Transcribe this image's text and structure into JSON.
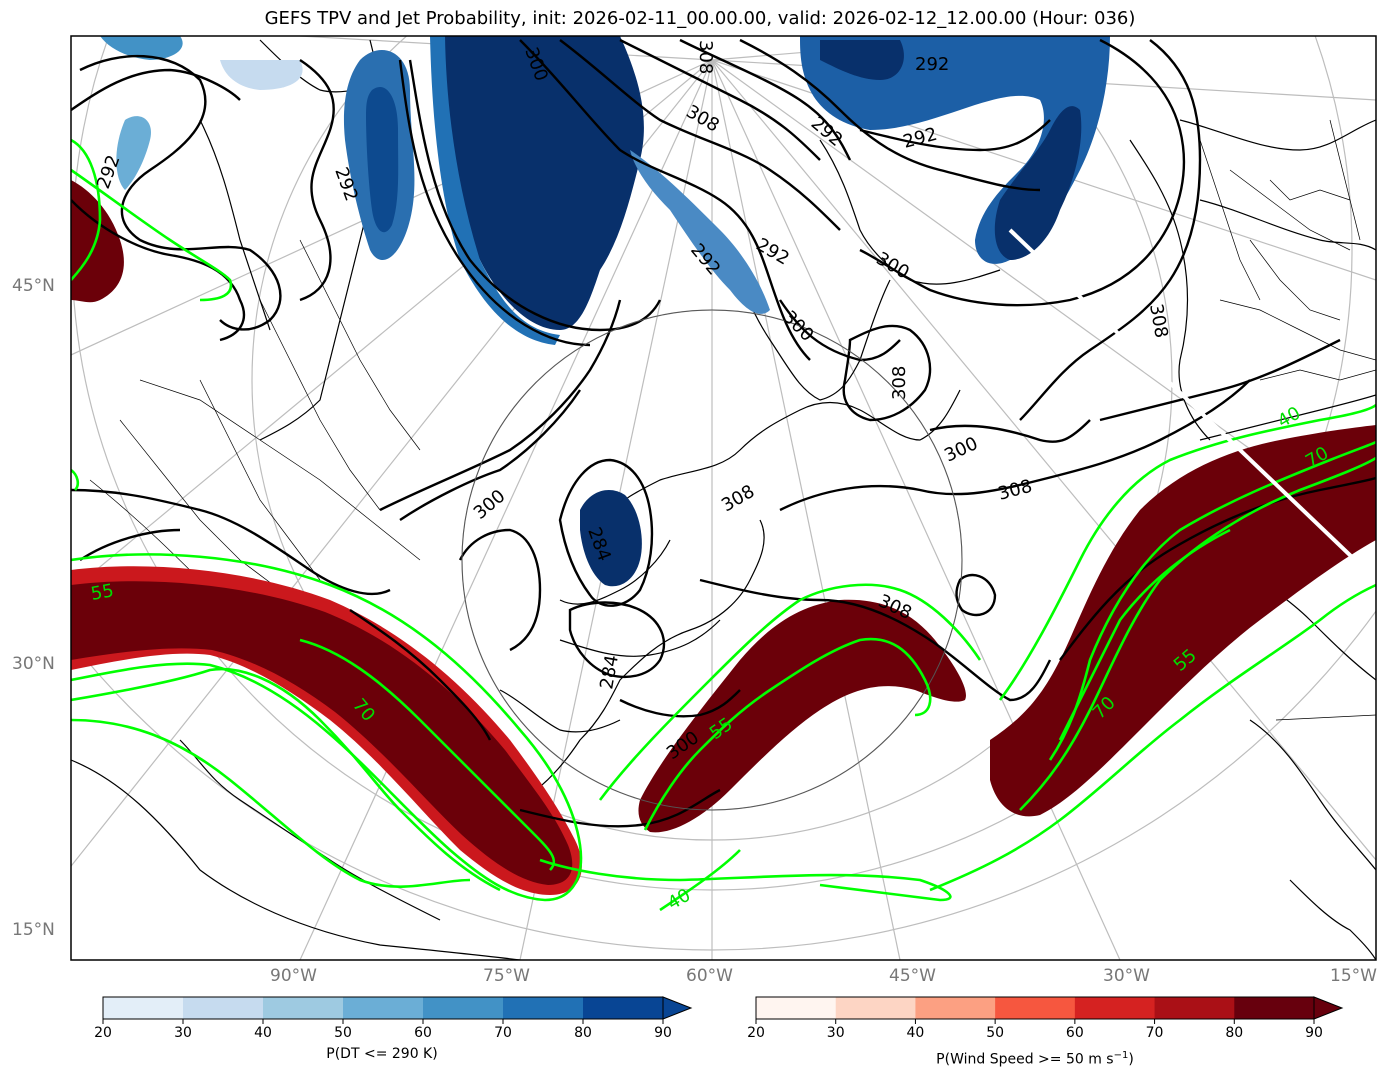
{
  "title": "GEFS TPV and Jet Probability, init: 2026-02-11_00.00.00, valid: 2026-02-12_12.00.00 (Hour: 036)",
  "lat_labels": [
    "45°N",
    "30°N",
    "15°N"
  ],
  "lon_labels": [
    "90°W",
    "75°W",
    "60°W",
    "45°W",
    "30°W",
    "15°W"
  ],
  "contour_labels_black": [
    "292",
    "292",
    "292",
    "292",
    "292",
    "292",
    "292",
    "300",
    "300",
    "300",
    "300",
    "300",
    "300",
    "308",
    "308",
    "308",
    "308",
    "308",
    "308",
    "308",
    "284",
    "284"
  ],
  "contour_labels_green": [
    "55",
    "55",
    "55",
    "70",
    "70",
    "70",
    "40",
    "40"
  ],
  "colorbar_left": {
    "label": "P(DT <= 290 K)",
    "ticks": [
      "20",
      "30",
      "40",
      "50",
      "60",
      "70",
      "80",
      "90"
    ],
    "colors": [
      "#e3eef8",
      "#c6dbef",
      "#9ecae1",
      "#6baed6",
      "#4292c6",
      "#2171b5",
      "#084594"
    ]
  },
  "colorbar_right": {
    "label": "P(Wind Speed >= 50 m s",
    "label_sup": "−1",
    "label_end": ")",
    "ticks": [
      "20",
      "30",
      "40",
      "50",
      "60",
      "70",
      "80",
      "90"
    ],
    "colors": [
      "#fff5f0",
      "#fdd5c4",
      "#fca082",
      "#f6573f",
      "#d52221",
      "#aa1016",
      "#67000d"
    ]
  },
  "colors": {
    "jet_fill": "#6b0009",
    "tpv_fill": "#08306b",
    "green_contour": "#00ff00",
    "black_contour": "#000000",
    "graticule": "#bbbbbb"
  }
}
